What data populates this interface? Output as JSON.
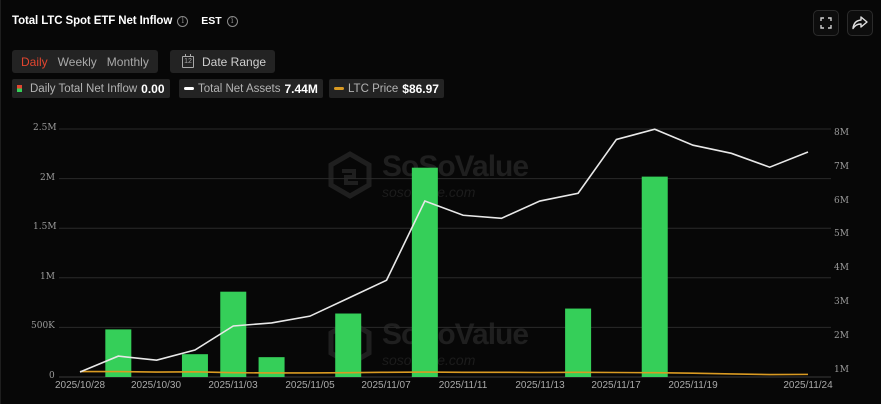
{
  "header": {
    "title": "Total LTC Spot ETF Net Inflow",
    "timezone": "EST",
    "fullscreen_icon": "expand-icon",
    "share_icon": "share-icon"
  },
  "controls": {
    "tabs": [
      {
        "label": "Daily",
        "active": true
      },
      {
        "label": "Weekly",
        "active": false
      },
      {
        "label": "Monthly",
        "active": false
      }
    ],
    "date_range_label": "Date Range",
    "date_range_icon_text": "12"
  },
  "legend": [
    {
      "label": "Daily Total Net Inflow",
      "value": "0.00",
      "color": "#35cf59"
    },
    {
      "label": "Total Net Assets",
      "value": "7.44M",
      "color": "#ffffff"
    },
    {
      "label": "LTC Price",
      "value": "$86.97",
      "color": "#d99a22"
    }
  ],
  "watermark": {
    "brand": "SoSoValue",
    "url": "sosovalue.com"
  },
  "colors": {
    "bar": "#35cf59",
    "net_assets_line": "#e8e8e8",
    "price_line": "#d99a22",
    "active_tab": "#e2452f",
    "grid": "#2a2a2a"
  },
  "chart_data": {
    "type": "bar",
    "title": "Total LTC Spot ETF Net Inflow",
    "xlabel": "",
    "ylabel": "Daily Total Net Inflow",
    "y2label": "Total Net Assets",
    "ylim": [
      0,
      2500000
    ],
    "y2lim": [
      1000000,
      8000000
    ],
    "y_ticks": [
      "0",
      "500K",
      "1M",
      "1.5M",
      "2M",
      "2.5M"
    ],
    "y2_ticks": [
      "1M",
      "2M",
      "3M",
      "4M",
      "5M",
      "6M",
      "7M",
      "8M"
    ],
    "x_tick_labels": [
      "2025/10/28",
      "2025/10/30",
      "2025/11/03",
      "2025/11/05",
      "2025/11/07",
      "2025/11/11",
      "2025/11/13",
      "2025/11/17",
      "2025/11/19",
      "2025/11/24"
    ],
    "grid": true,
    "legend_position": "top-left",
    "categories": [
      "2025/10/28",
      "2025/10/29",
      "2025/10/30",
      "2025/10/31",
      "2025/11/03",
      "2025/11/04",
      "2025/11/05",
      "2025/11/06",
      "2025/11/07",
      "2025/11/10",
      "2025/11/11",
      "2025/11/12",
      "2025/11/13",
      "2025/11/14",
      "2025/11/17",
      "2025/11/18",
      "2025/11/19",
      "2025/11/20",
      "2025/11/21",
      "2025/11/24"
    ],
    "series": [
      {
        "name": "Daily Total Net Inflow",
        "type": "bar",
        "axis": "left",
        "values": [
          0,
          480000,
          0,
          230000,
          860000,
          200000,
          0,
          640000,
          0,
          2110000,
          0,
          0,
          0,
          690000,
          0,
          2020000,
          0,
          0,
          0,
          0
        ]
      },
      {
        "name": "Total Net Assets",
        "type": "line",
        "axis": "right",
        "values": [
          940000,
          1410000,
          1290000,
          1590000,
          2300000,
          2390000,
          2590000,
          3120000,
          3650000,
          5990000,
          5570000,
          5480000,
          5990000,
          6220000,
          7810000,
          8110000,
          7640000,
          7400000,
          6990000,
          7440000
        ]
      },
      {
        "name": "LTC Price",
        "type": "line",
        "axis": "hidden",
        "values": [
          99,
          99,
          97,
          98,
          94,
          93,
          93,
          94,
          96,
          97,
          96,
          96,
          95,
          96,
          95,
          94,
          92,
          89,
          86,
          86.97
        ]
      }
    ]
  }
}
